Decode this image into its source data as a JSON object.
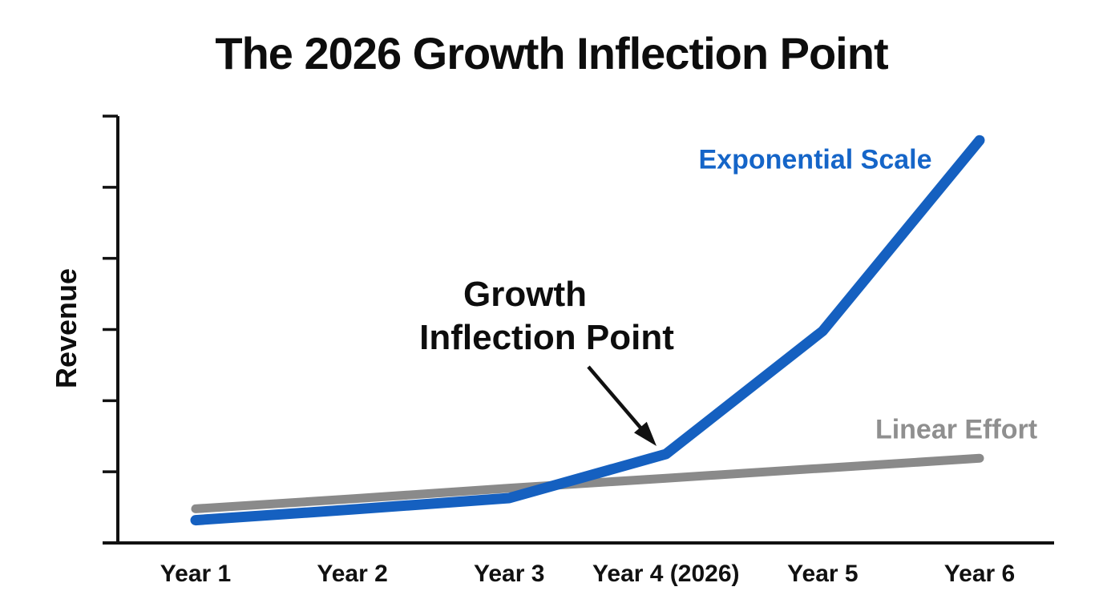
{
  "title": "The 2026 Growth Inflection Point",
  "axes": {
    "y_label": "Revenue",
    "x_tick_labels": [
      "Year 1",
      "Year 2",
      "Year 3",
      "Year 4 (2026)",
      "Year 5",
      "Year 6"
    ]
  },
  "series_labels": {
    "exponential": "Exponential Scale",
    "linear": "Linear Effort"
  },
  "annotation": {
    "line1": "Growth",
    "line2": "Inflection Point"
  },
  "colors": {
    "exponential_line": "#1560c0",
    "exponential_label": "#1565c8",
    "linear_line": "#8a8a8a",
    "linear_label": "#8f8f8f",
    "axis": "#111111",
    "annotation_arrow": "#111111",
    "text": "#0d0d0d"
  },
  "chart_data": {
    "type": "line",
    "title": "The 2026 Growth Inflection Point",
    "xlabel": "",
    "ylabel": "Revenue",
    "categories": [
      "Year 1",
      "Year 2",
      "Year 3",
      "Year 4 (2026)",
      "Year 5",
      "Year 6"
    ],
    "series": [
      {
        "name": "Linear Effort",
        "color": "#8a8a8a",
        "line_width": 11,
        "values": [
          0.48,
          0.62,
          0.77,
          0.91,
          1.05,
          1.19
        ]
      },
      {
        "name": "Exponential Scale",
        "color": "#1560c0",
        "line_width": 13,
        "values": [
          0.32,
          0.47,
          0.63,
          1.25,
          2.98,
          5.66
        ]
      }
    ],
    "ylim": [
      0,
      6
    ],
    "y_ticks": [
      1,
      2,
      3,
      4,
      5,
      6
    ],
    "y_tick_labels_visible": false,
    "x_tick_marks_visible": false,
    "grid": false,
    "legend_position": "inline-labels-near-lines",
    "annotations": [
      {
        "text": "Growth\nInflection Point",
        "target_series": "Exponential Scale",
        "target_category": "Year 4 (2026)"
      }
    ]
  }
}
